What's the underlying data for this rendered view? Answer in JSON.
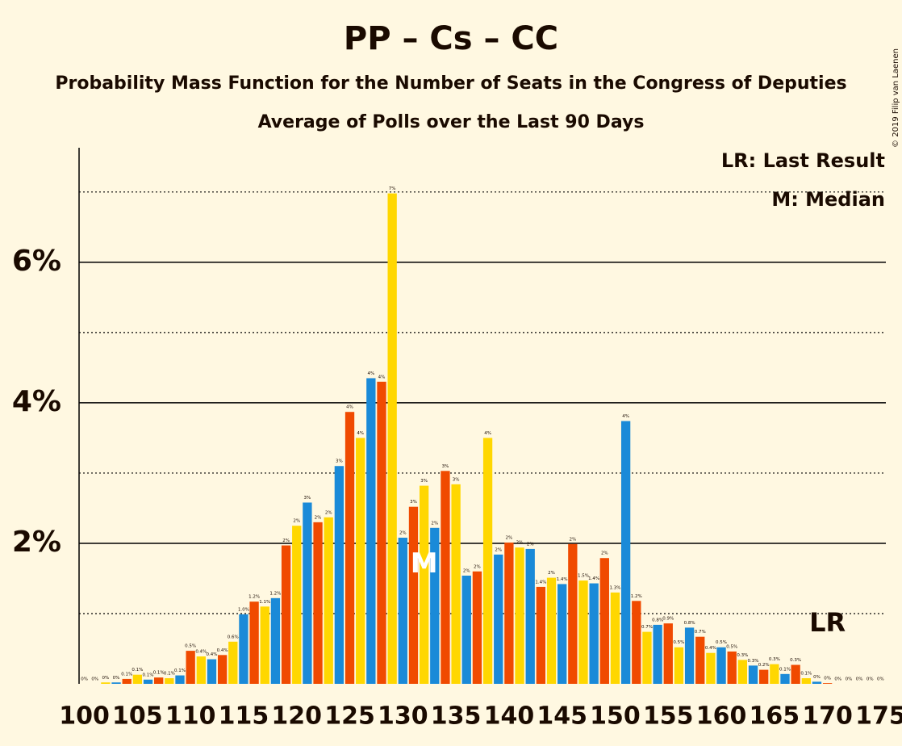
{
  "chart_data": {
    "type": "bar",
    "title": "PP – Cs – CC",
    "subtitle": [
      "Probability Mass Function for the Number of Seats in the Congress of Deputies",
      "Average of Polls over the Last 90 Days"
    ],
    "copyright": "© 2019 Filip van Laenen",
    "legend": [
      "LR: Last Result",
      "M: Median"
    ],
    "median": 132,
    "median_label": "M",
    "last_result": 170,
    "last_result_label": "LR",
    "colors": [
      "#1a8ad8",
      "#f04a00",
      "#ffd700"
    ],
    "x": [
      100,
      101,
      102,
      103,
      104,
      105,
      106,
      107,
      108,
      109,
      110,
      111,
      112,
      113,
      114,
      115,
      116,
      117,
      118,
      119,
      120,
      121,
      122,
      123,
      124,
      125,
      126,
      127,
      128,
      129,
      130,
      131,
      132,
      133,
      134,
      135,
      136,
      137,
      138,
      139,
      140,
      141,
      142,
      143,
      144,
      145,
      146,
      147,
      148,
      149,
      150,
      151,
      152,
      153,
      154,
      155,
      156,
      157,
      158,
      159,
      160,
      161,
      162,
      163,
      164,
      165,
      166,
      167,
      168,
      169,
      170,
      171,
      172,
      173,
      174,
      175
    ],
    "values": [
      0,
      0,
      0.02,
      0.02,
      0.07,
      0.13,
      0.06,
      0.09,
      0.08,
      0.12,
      0.47,
      0.39,
      0.35,
      0.41,
      0.6,
      0.99,
      1.17,
      1.1,
      1.22,
      1.97,
      2.25,
      2.58,
      2.3,
      2.37,
      3.1,
      3.87,
      3.5,
      4.35,
      4.3,
      6.98,
      2.08,
      2.52,
      2.82,
      2.22,
      3.03,
      2.84,
      1.54,
      1.6,
      3.5,
      1.84,
      2.01,
      1.94,
      1.92,
      1.38,
      1.51,
      1.42,
      1.99,
      1.47,
      1.43,
      1.79,
      1.3,
      3.74,
      1.18,
      0.74,
      0.84,
      0.86,
      0.52,
      0.8,
      0.67,
      0.44,
      0.52,
      0.46,
      0.34,
      0.26,
      0.2,
      0.28,
      0.14,
      0.27,
      0.08,
      0.03,
      0.01,
      0,
      0,
      0,
      0,
      0
    ],
    "value_labels": [
      "0%",
      "0%",
      "0%",
      "0%",
      "0.1%",
      "0.1%",
      "0.1%",
      "0.1%",
      "0.1%",
      "0.1%",
      "0.5%",
      "0.4%",
      "0.4%",
      "0.4%",
      "0.6%",
      "1.0%",
      "1.2%",
      "1.1%",
      "1.2%",
      "2%",
      "2%",
      "3%",
      "2%",
      "2%",
      "3%",
      "4%",
      "4%",
      "4%",
      "4%",
      "7%",
      "2%",
      "3%",
      "3%",
      "2%",
      "3%",
      "3%",
      "2%",
      "2%",
      "4%",
      "2%",
      "2%",
      "2%",
      "2%",
      "1.4%",
      "2%",
      "1.4%",
      "2%",
      "1.5%",
      "1.4%",
      "2%",
      "1.3%",
      "4%",
      "1.2%",
      "0.7%",
      "0.8%",
      "0.9%",
      "0.5%",
      "0.8%",
      "0.7%",
      "0.4%",
      "0.5%",
      "0.5%",
      "0.3%",
      "0.3%",
      "0.2%",
      "0.3%",
      "0.1%",
      "0.3%",
      "0.1%",
      "0%",
      "0%",
      "0%",
      "0%",
      "0%",
      "0%",
      "0%"
    ],
    "xlim": [
      99.5,
      175.5
    ],
    "xticks": [
      100,
      105,
      110,
      115,
      120,
      125,
      130,
      135,
      140,
      145,
      150,
      155,
      160,
      165,
      170,
      175
    ],
    "ylim": [
      0,
      7.63
    ],
    "yticks": [
      {
        "value": 2,
        "label": "2%"
      },
      {
        "value": 4,
        "label": "4%"
      },
      {
        "value": 6,
        "label": "6%"
      }
    ],
    "minor_gridlines": [
      1,
      3,
      5,
      7
    ],
    "grid": true
  }
}
